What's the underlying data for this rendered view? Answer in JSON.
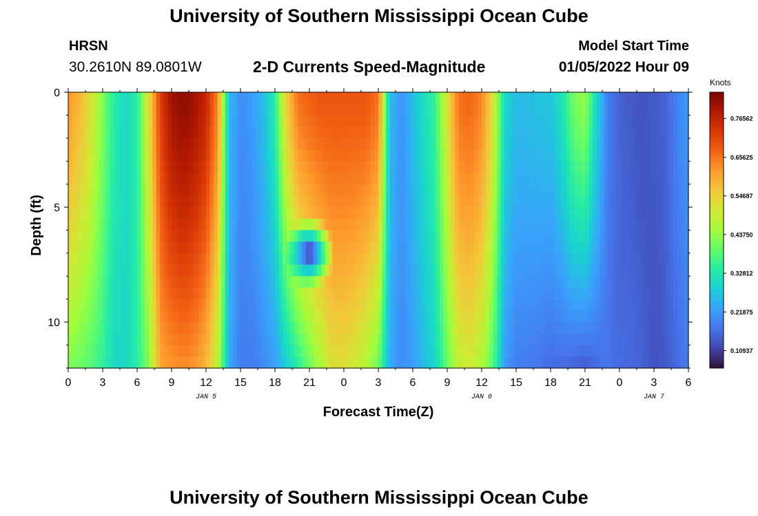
{
  "header": {
    "title": "University of Southern Mississippi Ocean Cube",
    "station_name": "HRSN",
    "station_coords": "30.2610N  89.0801W",
    "subtitle": "2-D Currents Speed-Magnitude",
    "model_start_label": "Model Start Time",
    "model_start_value": "01/05/2022 Hour 09"
  },
  "footer": {
    "title": "University of Southern Mississippi Ocean Cube"
  },
  "chart_data": {
    "type": "heatmap",
    "title": "2-D Currents Speed-Magnitude",
    "xlabel": "Forecast Time(Z)",
    "ylabel": "Depth (ft)",
    "x_ticks": [
      "0",
      "3",
      "6",
      "9",
      "12",
      "15",
      "18",
      "21",
      "0",
      "3",
      "6",
      "9",
      "12",
      "15",
      "18",
      "21",
      "0",
      "3",
      "6"
    ],
    "x_range_hours": [
      0,
      54
    ],
    "date_labels": [
      {
        "label": "JAN 5",
        "hour": 12
      },
      {
        "label": "JAN 6",
        "hour": 36
      },
      {
        "label": "JAN 7",
        "hour": 51
      }
    ],
    "y_ticks": [
      "0",
      "5",
      "10"
    ],
    "y_range": [
      0,
      12
    ],
    "colorbar": {
      "label": "Knots",
      "range": [
        0.06,
        0.84
      ],
      "ticks": [
        "0.76562",
        "0.65625",
        "0.54687",
        "0.43750",
        "0.32812",
        "0.21875",
        "0.10937"
      ],
      "tick_values": [
        0.76562,
        0.65625,
        0.54687,
        0.4375,
        0.32812,
        0.21875,
        0.10937
      ],
      "colormap": [
        "#30123b",
        "#4145ab",
        "#4675ed",
        "#39a2fc",
        "#1bcfd4",
        "#24eca6",
        "#61fc6c",
        "#a4fc3b",
        "#d1e834",
        "#f3c63a",
        "#fe9b2d",
        "#f36315",
        "#d93806",
        "#b11901",
        "#7a0403"
      ]
    },
    "profile_hours": [
      0,
      1,
      2,
      3,
      4,
      5,
      6,
      7,
      8,
      9,
      10,
      11,
      12,
      13,
      14,
      15,
      16,
      17,
      18,
      19,
      20,
      21,
      22,
      23,
      24,
      25,
      26,
      27,
      28,
      29,
      30,
      31,
      32,
      33,
      34,
      35,
      36,
      37,
      38,
      39,
      40,
      41,
      42,
      43,
      44,
      45,
      46,
      47,
      48,
      49,
      50,
      51,
      52,
      53,
      54
    ],
    "profile_top_knots": [
      0.62,
      0.58,
      0.52,
      0.42,
      0.34,
      0.3,
      0.34,
      0.52,
      0.72,
      0.8,
      0.82,
      0.8,
      0.76,
      0.64,
      0.26,
      0.2,
      0.22,
      0.26,
      0.34,
      0.55,
      0.66,
      0.68,
      0.69,
      0.69,
      0.69,
      0.69,
      0.69,
      0.66,
      0.26,
      0.21,
      0.26,
      0.31,
      0.36,
      0.52,
      0.66,
      0.67,
      0.64,
      0.52,
      0.3,
      0.26,
      0.26,
      0.27,
      0.27,
      0.32,
      0.41,
      0.44,
      0.3,
      0.18,
      0.15,
      0.14,
      0.13,
      0.14,
      0.15,
      0.19,
      0.22
    ],
    "profile_bottom_knots": [
      0.42,
      0.4,
      0.38,
      0.35,
      0.3,
      0.3,
      0.34,
      0.42,
      0.6,
      0.62,
      0.63,
      0.62,
      0.58,
      0.48,
      0.24,
      0.18,
      0.18,
      0.2,
      0.22,
      0.28,
      0.34,
      0.4,
      0.46,
      0.52,
      0.52,
      0.5,
      0.46,
      0.4,
      0.24,
      0.2,
      0.22,
      0.26,
      0.3,
      0.4,
      0.48,
      0.5,
      0.46,
      0.38,
      0.22,
      0.18,
      0.18,
      0.17,
      0.16,
      0.16,
      0.15,
      0.14,
      0.16,
      0.17,
      0.16,
      0.16,
      0.15,
      0.13,
      0.14,
      0.16,
      0.18
    ],
    "anomaly": {
      "hour": 21,
      "depth": 7,
      "knots": 0.07
    },
    "grid": false,
    "legend": "colorbar-right"
  }
}
